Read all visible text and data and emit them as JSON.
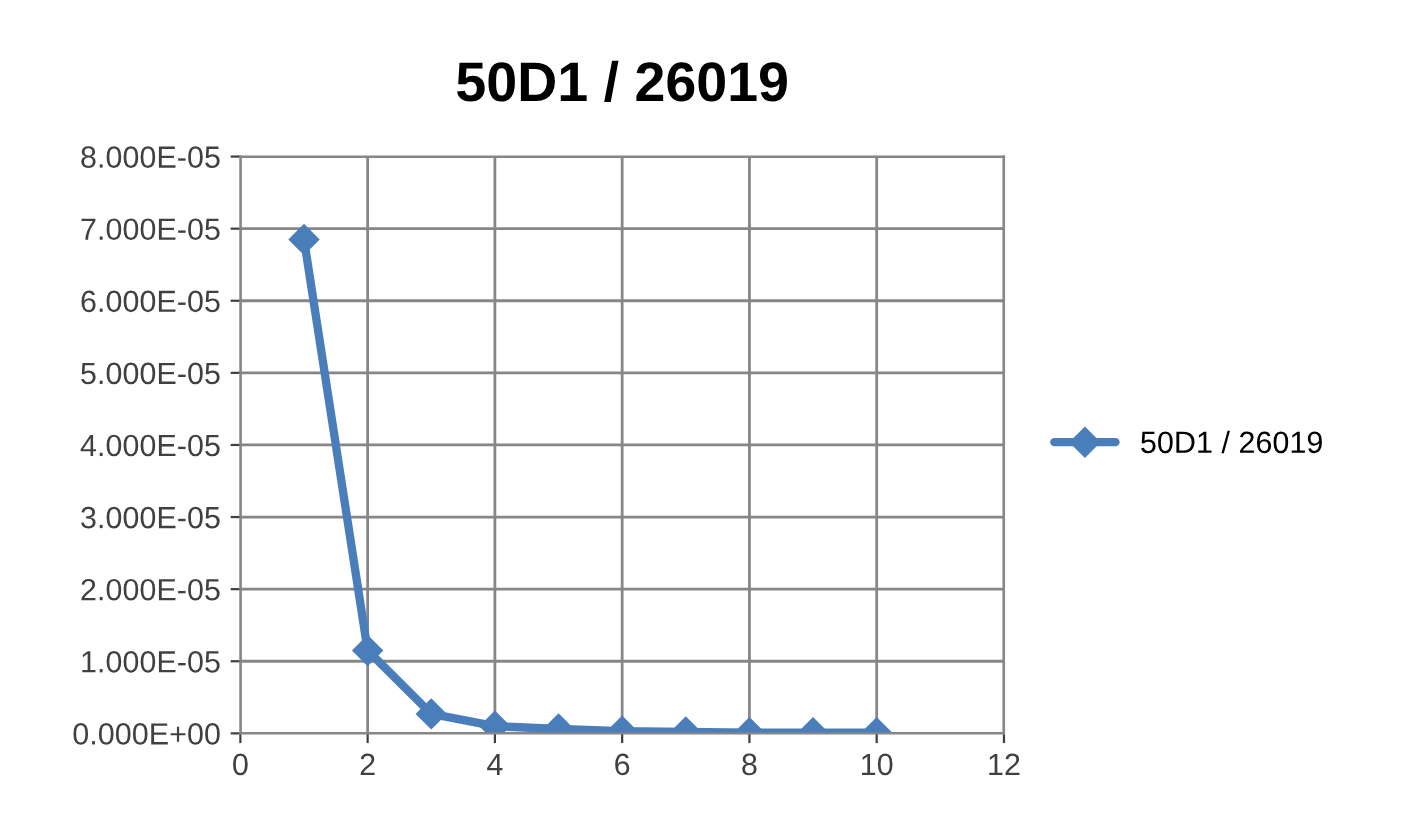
{
  "chart_data": {
    "type": "line",
    "title": "50D1 / 26019",
    "x": [
      1,
      2,
      3,
      4,
      5,
      6,
      7,
      8,
      9,
      10
    ],
    "series": [
      {
        "name": "50D1 / 26019",
        "color": "#4a7ebb",
        "values": [
          6.85e-05,
          1.15e-05,
          2.7e-06,
          1e-06,
          6e-07,
          3e-07,
          2e-07,
          1e-07,
          1e-07,
          1e-07
        ]
      }
    ],
    "xlim": [
      0,
      12
    ],
    "xticks": [
      0,
      2,
      4,
      6,
      8,
      10,
      12
    ],
    "ylim": [
      0,
      8e-05
    ],
    "yticks": [
      {
        "value": 0,
        "label": "0.000E+00"
      },
      {
        "value": 1e-05,
        "label": "1.000E-05"
      },
      {
        "value": 2e-05,
        "label": "2.000E-05"
      },
      {
        "value": 3e-05,
        "label": "3.000E-05"
      },
      {
        "value": 4e-05,
        "label": "4.000E-05"
      },
      {
        "value": 5e-05,
        "label": "5.000E-05"
      },
      {
        "value": 6e-05,
        "label": "6.000E-05"
      },
      {
        "value": 7e-05,
        "label": "7.000E-05"
      },
      {
        "value": 8e-05,
        "label": "8.000E-05"
      }
    ],
    "grid": true,
    "legend": "right",
    "marker": "diamond",
    "line_style": "solid"
  }
}
